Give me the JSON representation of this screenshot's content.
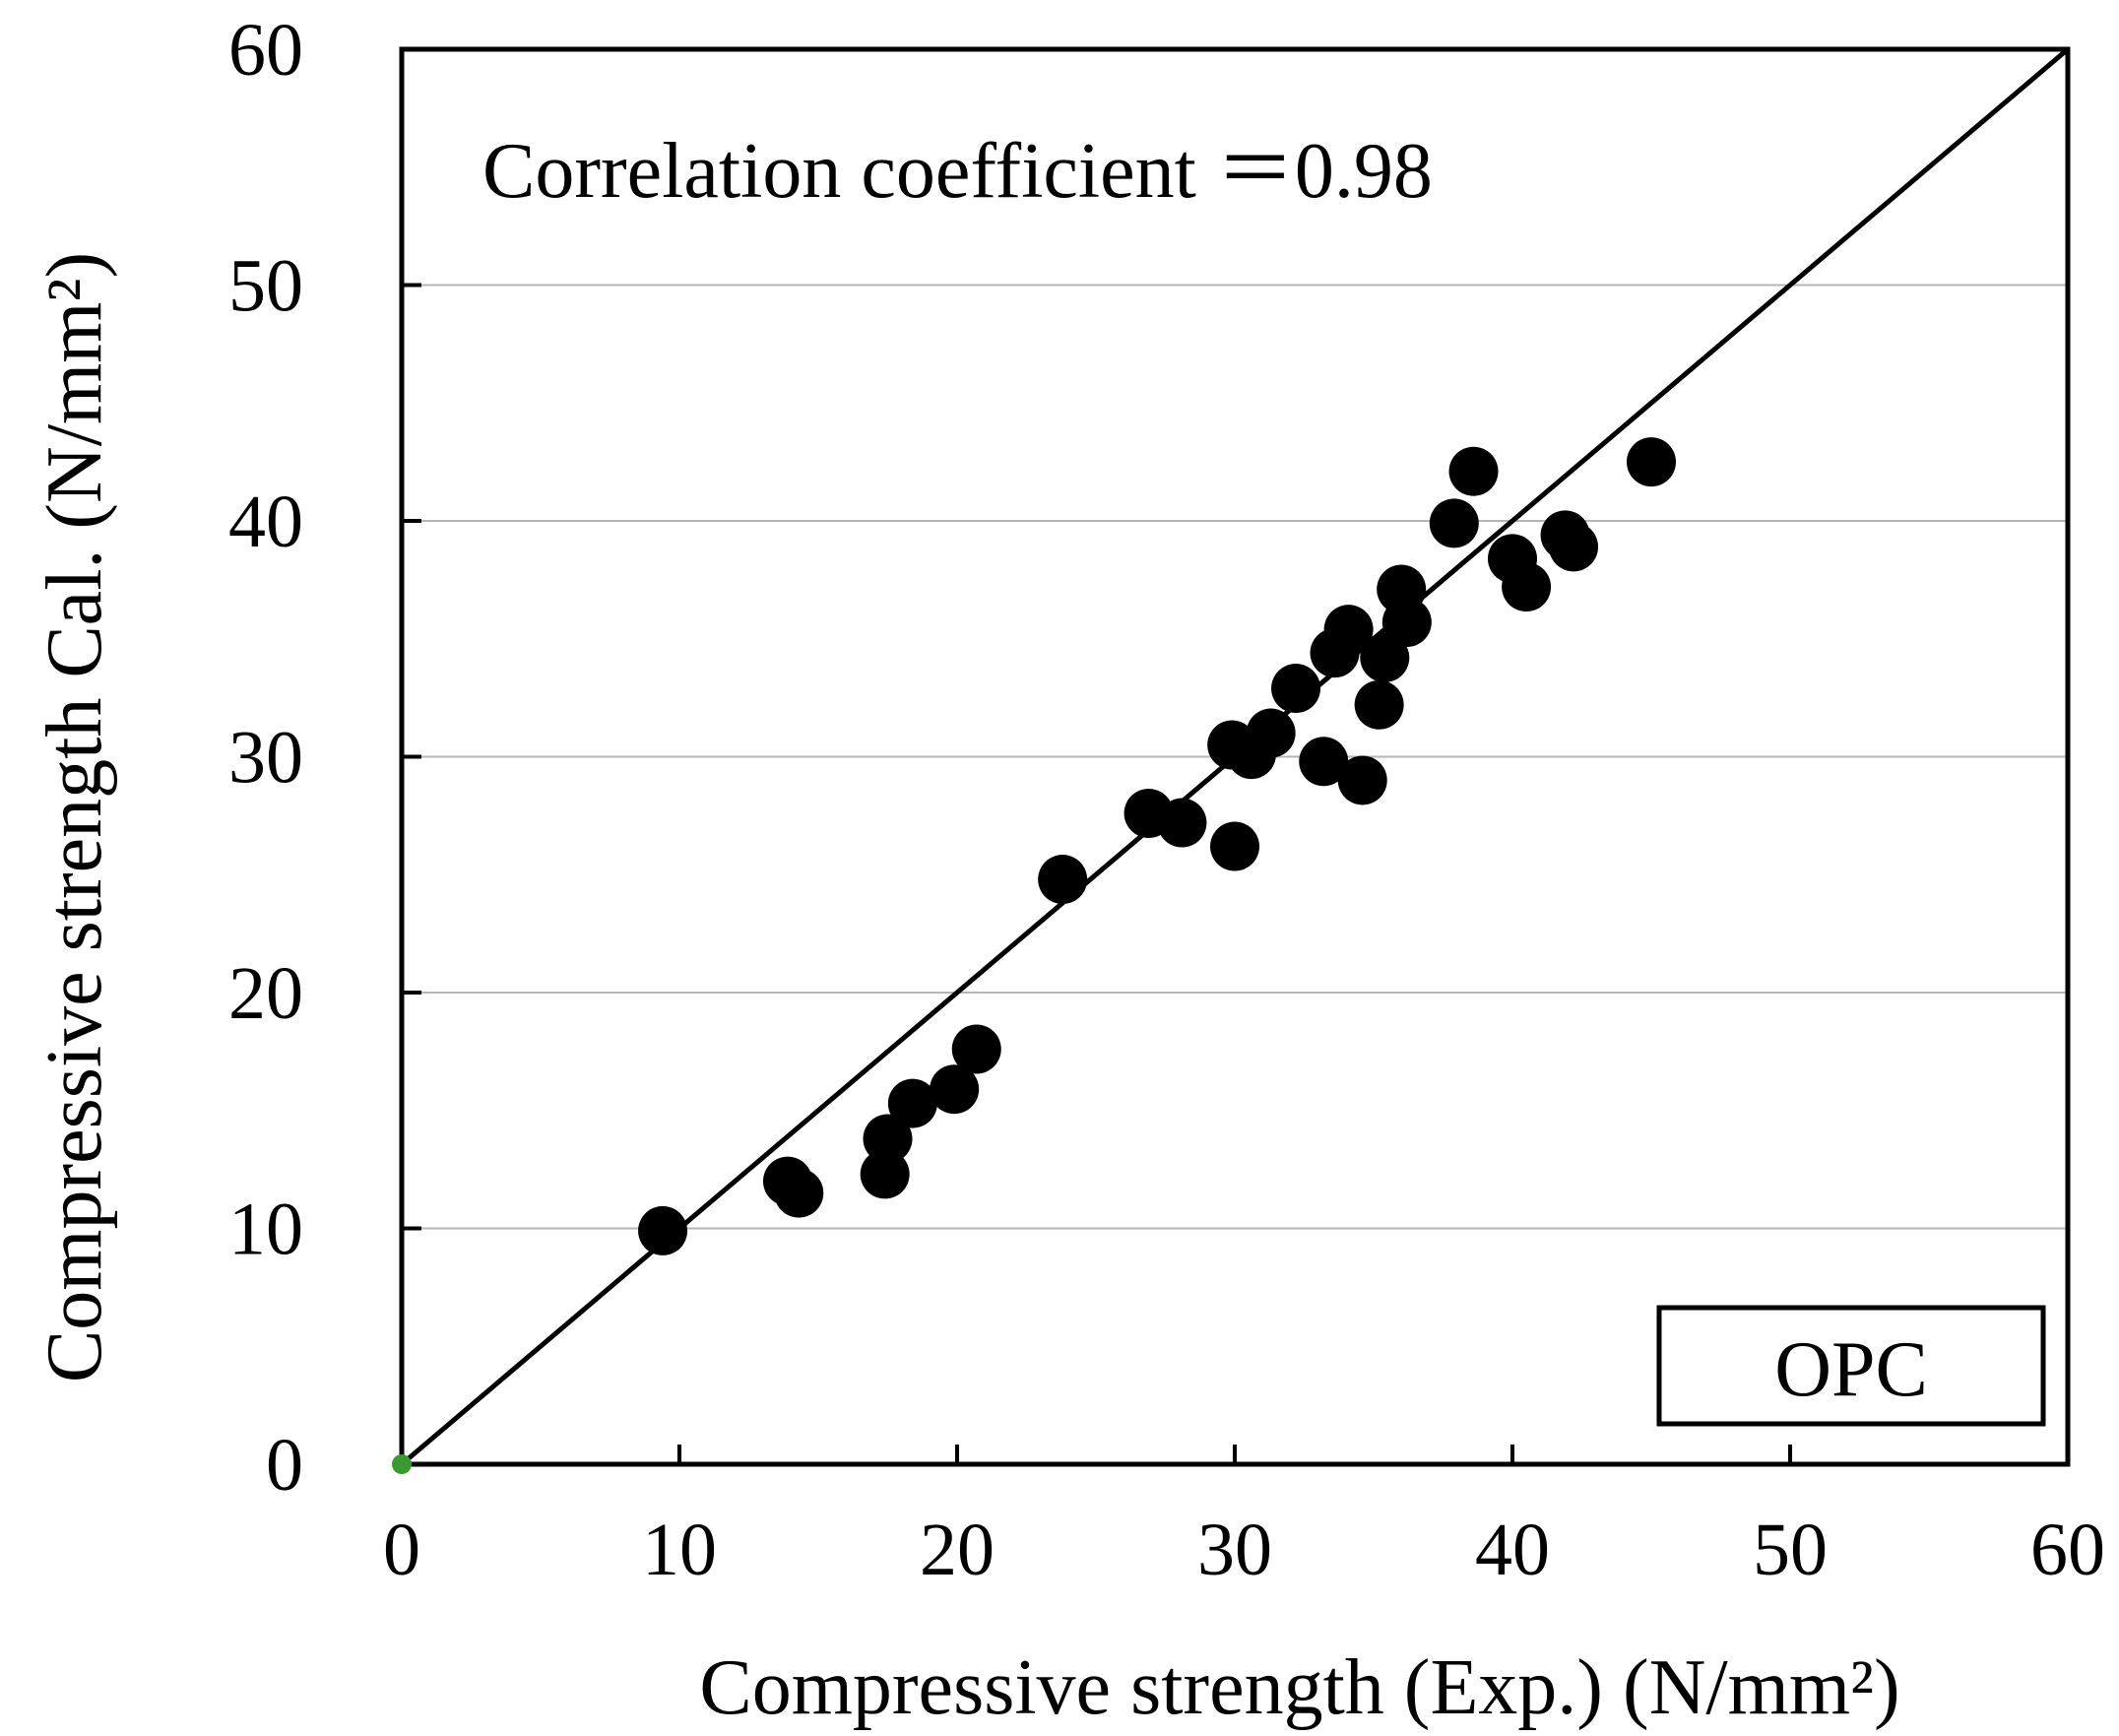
{
  "chart_data": {
    "type": "scatter",
    "title": "",
    "xlabel": "Compressive strength (Exp.) (N/mm²)",
    "ylabel": "Compressive strength Cal. (N/mm²)",
    "xlim": [
      0,
      60
    ],
    "ylim": [
      0,
      60
    ],
    "xticks": [
      "0",
      "10",
      "20",
      "30",
      "40",
      "50",
      "60"
    ],
    "yticks": [
      "0",
      "10",
      "20",
      "30",
      "40",
      "50",
      "60"
    ],
    "grid": "horizontal",
    "annotation": "Correlation coefficient ＝0.98",
    "legend": {
      "label": "OPC",
      "placement": "bottom-right"
    },
    "reference_line": {
      "name": "1:1 line",
      "from": [
        0,
        0
      ],
      "to": [
        60,
        60
      ]
    },
    "origin_marker": {
      "x": 0,
      "y": 0,
      "color": "#3a9a32"
    },
    "series": [
      {
        "name": "OPC",
        "color": "#000000",
        "points": [
          [
            9.4,
            9.9
          ],
          [
            13.9,
            12.0
          ],
          [
            14.3,
            11.5
          ],
          [
            17.4,
            12.3
          ],
          [
            17.5,
            13.8
          ],
          [
            18.4,
            15.3
          ],
          [
            19.9,
            15.9
          ],
          [
            20.7,
            17.6
          ],
          [
            23.8,
            24.8
          ],
          [
            26.9,
            27.6
          ],
          [
            28.1,
            27.2
          ],
          [
            29.9,
            30.5
          ],
          [
            30.0,
            26.2
          ],
          [
            30.6,
            30.1
          ],
          [
            31.3,
            31.0
          ],
          [
            32.2,
            32.9
          ],
          [
            33.2,
            29.8
          ],
          [
            33.6,
            34.4
          ],
          [
            34.1,
            35.4
          ],
          [
            34.6,
            29.0
          ],
          [
            35.2,
            32.2
          ],
          [
            35.4,
            34.2
          ],
          [
            36.0,
            37.1
          ],
          [
            36.2,
            35.7
          ],
          [
            37.9,
            39.9
          ],
          [
            38.6,
            42.1
          ],
          [
            40.0,
            38.4
          ],
          [
            40.5,
            37.2
          ],
          [
            41.9,
            39.4
          ],
          [
            42.2,
            38.9
          ],
          [
            45.0,
            42.5
          ]
        ]
      }
    ]
  }
}
